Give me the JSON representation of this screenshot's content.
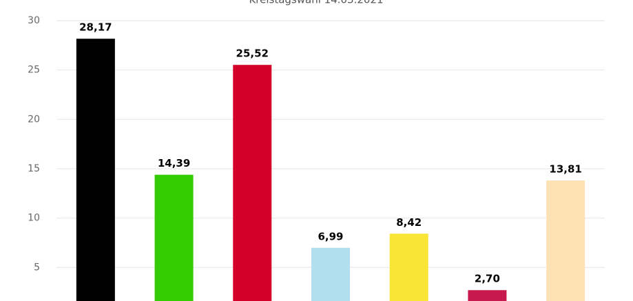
{
  "chart_data": {
    "type": "bar",
    "title": "Kreistagswahl 14.03.2021",
    "categories": [
      null,
      null,
      null,
      null,
      null,
      null,
      null
    ],
    "values": [
      28.17,
      14.39,
      25.52,
      6.99,
      8.42,
      2.7,
      13.81
    ],
    "value_labels": [
      "28,17",
      "14,39",
      "25,52",
      "6,99",
      "8,42",
      "2,70",
      "13,81"
    ],
    "colors": [
      "#000000",
      "#33cc00",
      "#d4002a",
      "#b2dfee",
      "#f9e535",
      "#c7194d",
      "#fde1b5"
    ],
    "ylim": [
      1.6,
      30
    ],
    "yticks": [
      5,
      10,
      15,
      20,
      25,
      30
    ],
    "grid": true
  }
}
